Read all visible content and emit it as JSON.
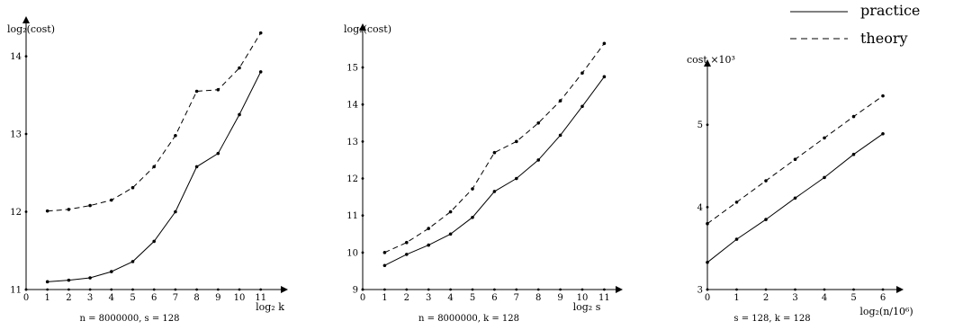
{
  "legend": {
    "practice": "practice",
    "theory": "theory"
  },
  "chart_data": [
    {
      "type": "line",
      "ylabel": "log₂(cost)",
      "xlabel": "log₂ k",
      "caption": "n = 8000000, s = 128",
      "xlim": [
        0,
        12
      ],
      "ylim": [
        11,
        14.4
      ],
      "xticks": [
        "0",
        "1",
        "2",
        "3",
        "4",
        "5",
        "6",
        "7",
        "8",
        "9",
        "10",
        "11"
      ],
      "yticks": [
        "11",
        "12",
        "13",
        "14"
      ],
      "series": [
        {
          "name": "practice",
          "dash": false,
          "x": [
            1,
            2,
            3,
            4,
            5,
            6,
            7,
            8,
            9,
            10,
            11
          ],
          "values": [
            11.1,
            11.12,
            11.15,
            11.23,
            11.36,
            11.62,
            12.0,
            12.58,
            12.75,
            13.25,
            13.8
          ]
        },
        {
          "name": "theory",
          "dash": true,
          "x": [
            1,
            2,
            3,
            4,
            5,
            6,
            7,
            8,
            9,
            10,
            11
          ],
          "values": [
            12.01,
            12.03,
            12.08,
            12.15,
            12.31,
            12.58,
            12.98,
            13.55,
            13.57,
            13.85,
            14.3
          ]
        }
      ]
    },
    {
      "type": "line",
      "ylabel": "log₂(cost)",
      "xlabel": "log₂ s",
      "caption": "n = 8000000, k = 128",
      "xlim": [
        0,
        12
      ],
      "ylim": [
        9,
        15.9
      ],
      "xticks": [
        "0",
        "1",
        "2",
        "3",
        "4",
        "5",
        "6",
        "7",
        "8",
        "9",
        "10",
        "11"
      ],
      "yticks": [
        "9",
        "10",
        "11",
        "12",
        "13",
        "14",
        "15"
      ],
      "series": [
        {
          "name": "practice",
          "dash": false,
          "x": [
            1,
            2,
            3,
            4,
            5,
            6,
            7,
            8,
            9,
            10,
            11
          ],
          "values": [
            9.65,
            9.95,
            10.2,
            10.5,
            10.95,
            11.65,
            12.0,
            12.5,
            13.17,
            13.95,
            14.75
          ]
        },
        {
          "name": "theory",
          "dash": true,
          "x": [
            1,
            2,
            3,
            4,
            5,
            6,
            7,
            8,
            9,
            10,
            11
          ],
          "values": [
            10.0,
            10.27,
            10.65,
            11.1,
            11.72,
            12.7,
            13.0,
            13.5,
            14.1,
            14.85,
            15.65
          ]
        }
      ]
    },
    {
      "type": "line",
      "ylabel": "cost ×10³",
      "xlabel": "log₂(n/10⁶)",
      "caption": "s = 128, k = 128",
      "xlim": [
        0,
        7
      ],
      "ylim": [
        3,
        5.75
      ],
      "xticks": [
        "0",
        "1",
        "2",
        "3",
        "4",
        "5",
        "6"
      ],
      "yticks": [
        "3",
        "4",
        "5"
      ],
      "series": [
        {
          "name": "practice",
          "dash": false,
          "x": [
            0,
            1,
            2,
            3,
            4,
            5,
            6
          ],
          "values": [
            3.33,
            3.61,
            3.85,
            4.11,
            4.36,
            4.64,
            4.89
          ]
        },
        {
          "name": "theory",
          "dash": true,
          "x": [
            0,
            1,
            2,
            3,
            4,
            5,
            6
          ],
          "values": [
            3.8,
            4.06,
            4.32,
            4.58,
            4.84,
            5.1,
            5.35
          ]
        }
      ]
    }
  ]
}
